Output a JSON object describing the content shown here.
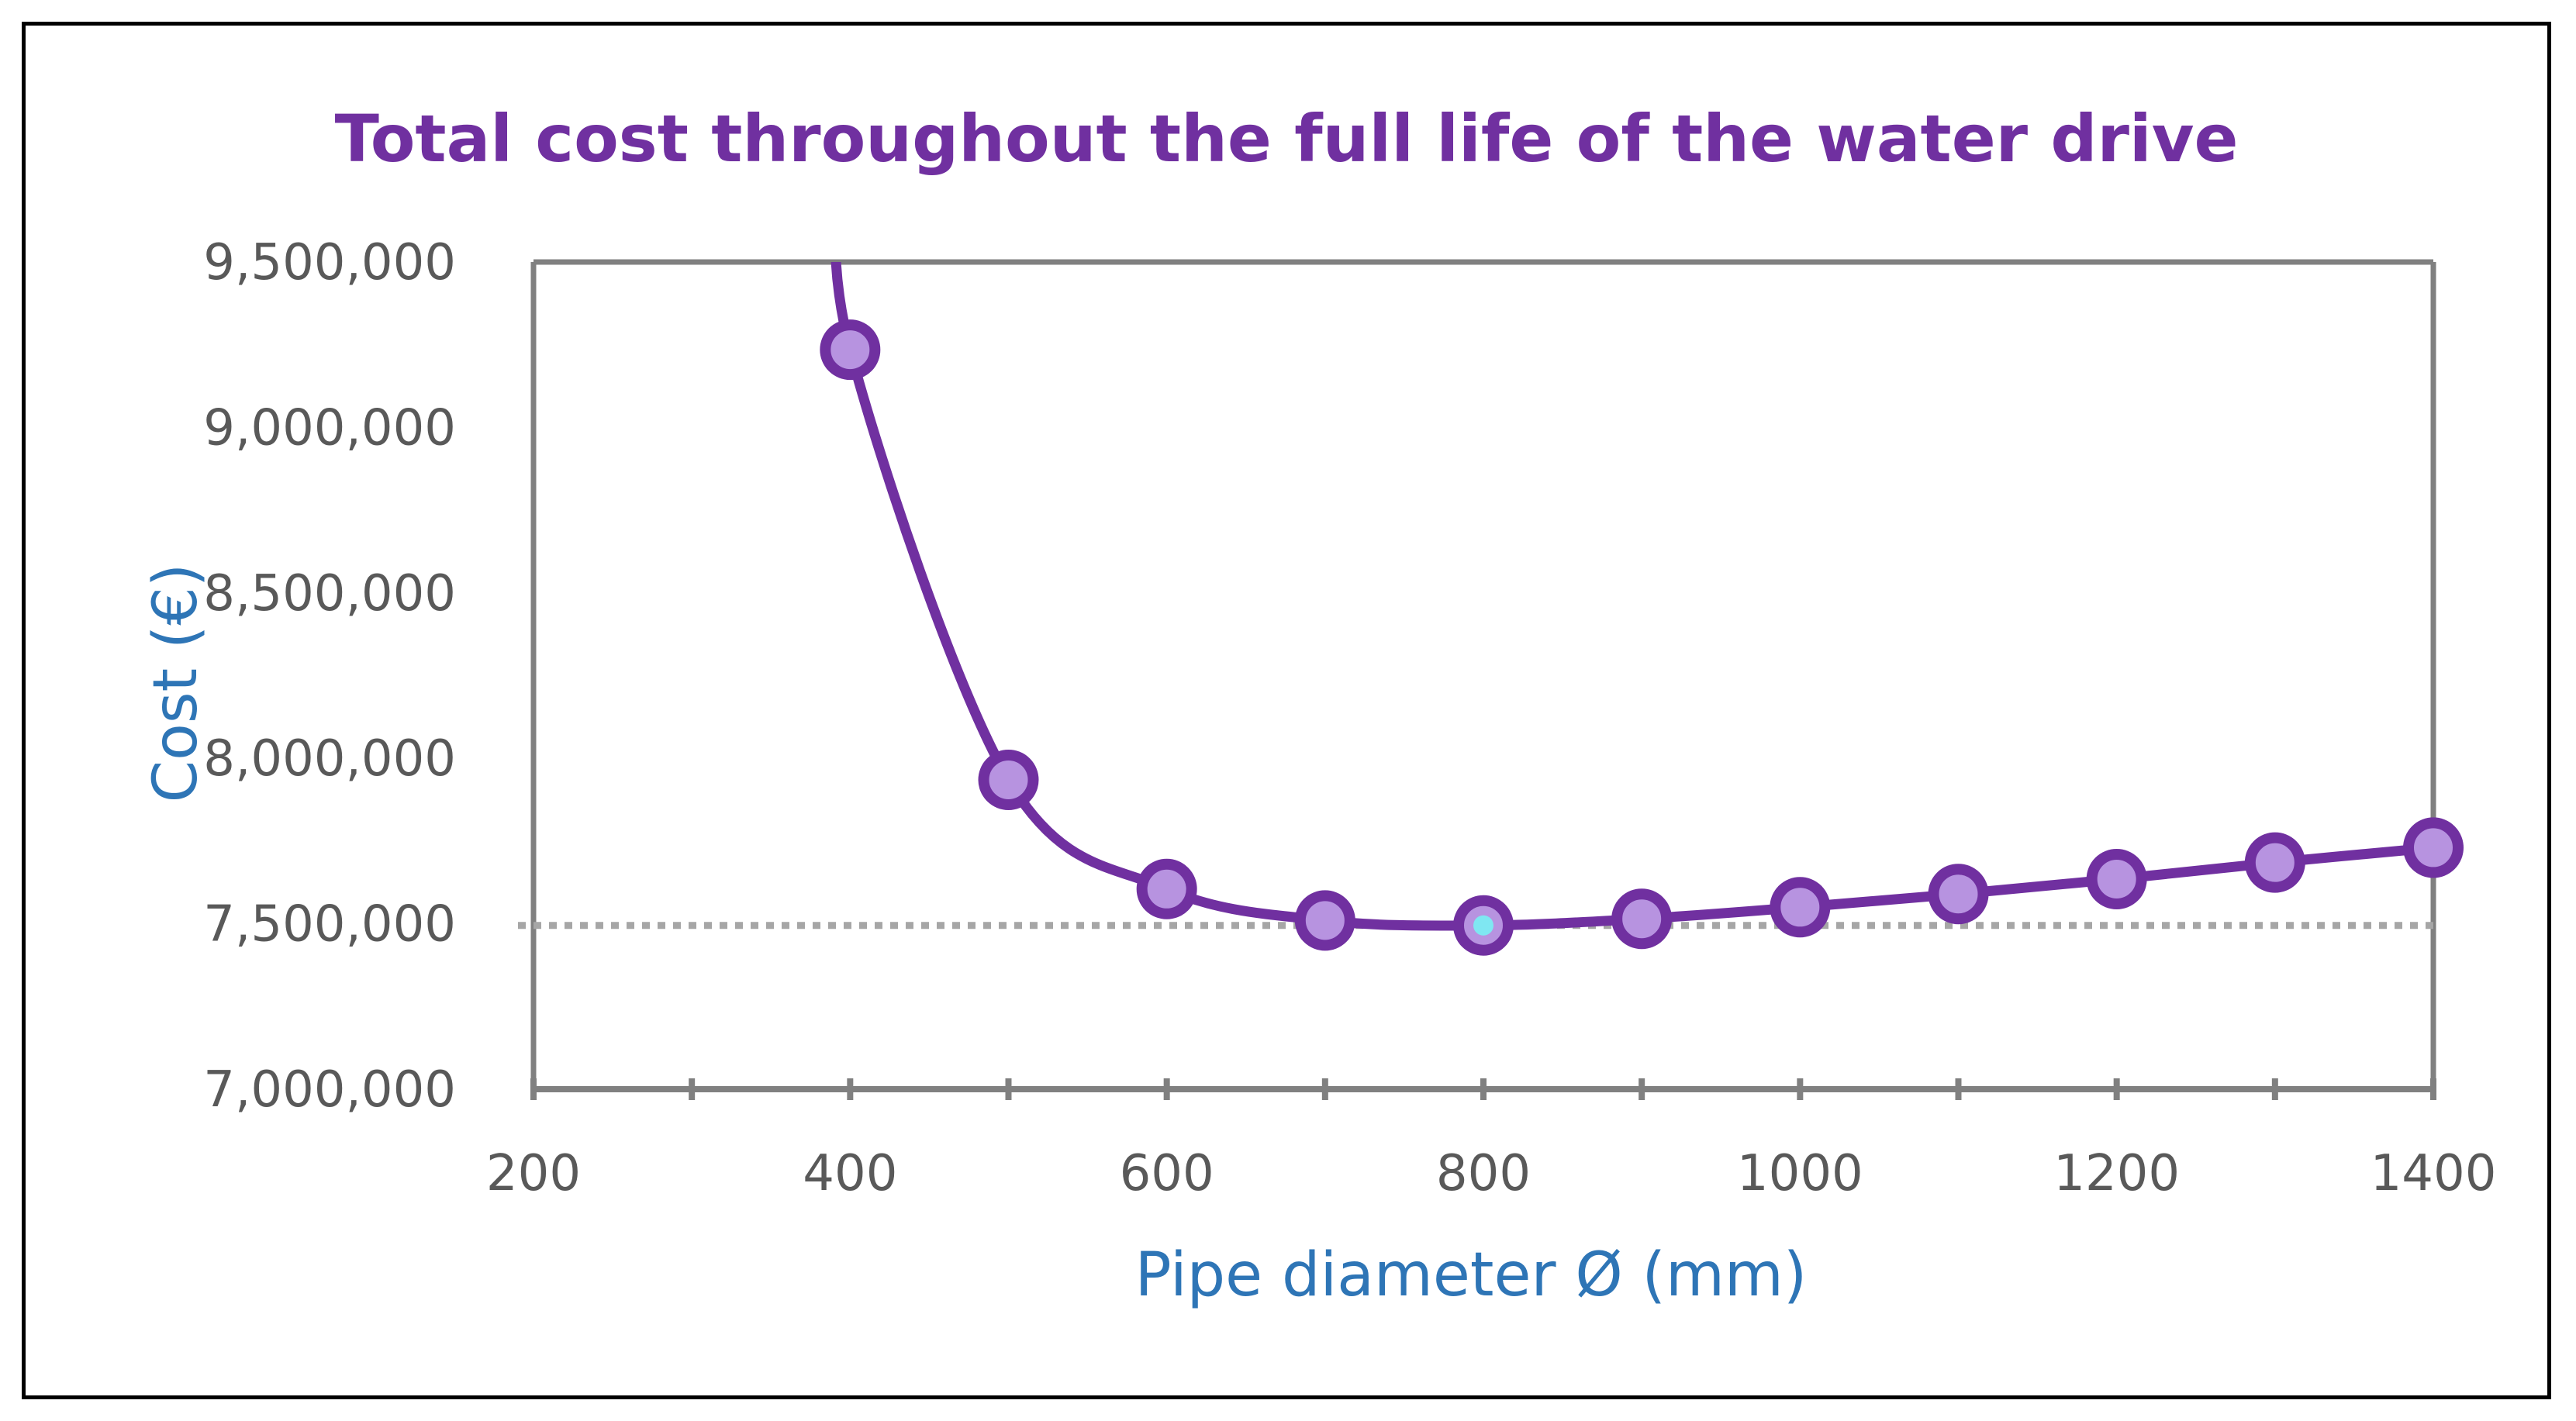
{
  "chart_data": {
    "type": "line",
    "title": "Total cost throughout the full life of the water drive",
    "xlabel": "Pipe diameter Ø (mm)",
    "ylabel": "Cost (€)",
    "xlim": [
      200,
      1400
    ],
    "ylim": [
      7000000,
      9500000
    ],
    "x_ticks": [
      200,
      400,
      600,
      800,
      1000,
      1200,
      1400
    ],
    "x_minor_step": 100,
    "y_ticks": [
      7000000,
      7500000,
      8000000,
      8500000,
      9000000,
      9500000
    ],
    "y_tick_labels": [
      "7,000,000",
      "7,500,000",
      "8,000,000",
      "8,500,000",
      "9,000,000",
      "9,500,000"
    ],
    "smoothed": true,
    "grid": false,
    "series": [
      {
        "name": "Total cost",
        "x": [
          400,
          500,
          600,
          700,
          800,
          900,
          1000,
          1100,
          1200,
          1300,
          1400
        ],
        "values": [
          9235000,
          7935000,
          7605000,
          7510000,
          7495000,
          7515000,
          7550000,
          7590000,
          7635000,
          7685000,
          7730000
        ]
      }
    ],
    "reference_line": {
      "y": 7495000,
      "style": "dotted"
    },
    "highlight_point_index": 4
  },
  "colors": {
    "title": "#7030A0",
    "line": "#7030A0",
    "marker_fill": "#B793E0",
    "highlight_fill": "#7FE7F2",
    "axis_title": "#2E75B6",
    "axis": "#808080",
    "tick_label": "#595959",
    "reference_line": "#A6A6A6",
    "frame": "#000000"
  }
}
